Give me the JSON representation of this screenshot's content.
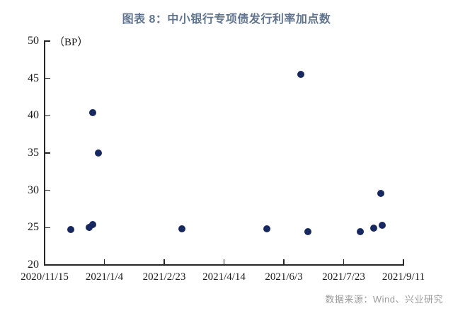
{
  "title": "图表 8：中小银行专项债发行利率加点数",
  "source": "数据来源：Wind、兴业研究",
  "colors": {
    "title": "#60748f",
    "point": "#16285f",
    "axis": "#262626",
    "label": "#1a1a1a",
    "source": "#9b9b9b",
    "background": "#ffffff"
  },
  "chart_data": {
    "type": "scatter",
    "title": "图表 8：中小银行专项债发行利率加点数",
    "unit_label": "（BP）",
    "ylabel": "BP",
    "xlabel": "",
    "grid": false,
    "legend": "none",
    "x_axis": {
      "type": "date",
      "start": "2020/11/15",
      "end": "2021/9/11",
      "tick_labels": [
        "2020/11/15",
        "2021/1/4",
        "2021/2/23",
        "2021/4/14",
        "2021/6/3",
        "2021/7/23",
        "2021/9/11"
      ]
    },
    "y_axis": {
      "min": 20,
      "max": 50,
      "tick_labels": [
        50,
        45,
        40,
        35,
        30,
        25,
        20
      ]
    },
    "points": [
      {
        "date": "2020/12/7",
        "value": 24.7
      },
      {
        "date": "2020/12/22",
        "value": 25.0
      },
      {
        "date": "2020/12/25",
        "value": 25.4
      },
      {
        "date": "2020/12/25",
        "value": 40.4
      },
      {
        "date": "2020/12/30",
        "value": 35.0
      },
      {
        "date": "2021/3/10",
        "value": 24.8
      },
      {
        "date": "2021/5/20",
        "value": 24.8
      },
      {
        "date": "2021/6/17",
        "value": 45.5
      },
      {
        "date": "2021/6/23",
        "value": 24.5
      },
      {
        "date": "2021/8/6",
        "value": 24.5
      },
      {
        "date": "2021/8/17",
        "value": 24.9
      },
      {
        "date": "2021/8/23",
        "value": 29.6
      },
      {
        "date": "2021/8/24",
        "value": 25.3
      }
    ]
  }
}
